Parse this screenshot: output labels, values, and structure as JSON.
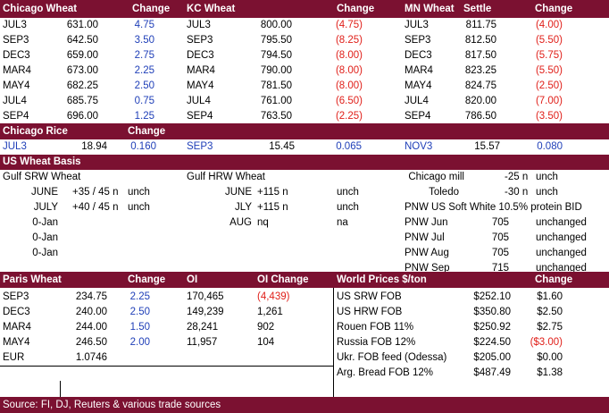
{
  "futures_header": {
    "chicago": "Chicago Wheat",
    "change": "Change",
    "kc": "KC Wheat",
    "kc_change": "Change",
    "mn": "MN Wheat",
    "settle": "Settle",
    "mn_change": "Change"
  },
  "chicago_rows": [
    {
      "m": "JUL3",
      "p": "631.00",
      "c": "4.75",
      "cc": "blue"
    },
    {
      "m": "SEP3",
      "p": "642.50",
      "c": "3.50",
      "cc": "blue"
    },
    {
      "m": "DEC3",
      "p": "659.00",
      "c": "2.75",
      "cc": "blue"
    },
    {
      "m": "MAR4",
      "p": "673.00",
      "c": "2.25",
      "cc": "blue"
    },
    {
      "m": "MAY4",
      "p": "682.25",
      "c": "2.50",
      "cc": "blue"
    },
    {
      "m": "JUL4",
      "p": "685.75",
      "c": "0.75",
      "cc": "blue"
    },
    {
      "m": "SEP4",
      "p": "696.00",
      "c": "1.25",
      "cc": "blue"
    }
  ],
  "kc_rows": [
    {
      "m": "JUL3",
      "p": "800.00",
      "c": "(4.75)",
      "cc": "red"
    },
    {
      "m": "SEP3",
      "p": "795.50",
      "c": "(8.25)",
      "cc": "red"
    },
    {
      "m": "DEC3",
      "p": "794.50",
      "c": "(8.00)",
      "cc": "red"
    },
    {
      "m": "MAR4",
      "p": "790.00",
      "c": "(8.00)",
      "cc": "red"
    },
    {
      "m": "MAY4",
      "p": "781.50",
      "c": "(8.00)",
      "cc": "red"
    },
    {
      "m": "JUL4",
      "p": "761.00",
      "c": "(6.50)",
      "cc": "red"
    },
    {
      "m": "SEP4",
      "p": "763.50",
      "c": "(2.25)",
      "cc": "red"
    }
  ],
  "mn_rows": [
    {
      "m": "JUL3",
      "p": "811.75",
      "c": "(4.00)",
      "cc": "red"
    },
    {
      "m": "SEP3",
      "p": "812.50",
      "c": "(5.50)",
      "cc": "red"
    },
    {
      "m": "DEC3",
      "p": "817.50",
      "c": "(5.75)",
      "cc": "red"
    },
    {
      "m": "MAR4",
      "p": "823.25",
      "c": "(5.50)",
      "cc": "red"
    },
    {
      "m": "MAY4",
      "p": "824.75",
      "c": "(2.50)",
      "cc": "red"
    },
    {
      "m": "JUL4",
      "p": "820.00",
      "c": "(7.00)",
      "cc": "red"
    },
    {
      "m": "SEP4",
      "p": "786.50",
      "c": "(3.50)",
      "cc": "red"
    }
  ],
  "rice": {
    "title": "Chicago Rice",
    "change": "Change",
    "m1": "JUL3",
    "p1": "18.94",
    "c1": "0.160",
    "m2": "SEP3",
    "p2": "15.45",
    "c2": "0.065",
    "m3": "NOV3",
    "p3": "15.57",
    "c3": "0.080"
  },
  "basis": {
    "title": "US Wheat Basis",
    "gulf_srw": "Gulf SRW Wheat",
    "gulf_hrw": "Gulf HRW Wheat",
    "srw_rows": [
      {
        "m": "JUNE",
        "v": "+35 / 45 n",
        "c": "unch"
      },
      {
        "m": "JULY",
        "v": "+40 / 45 n",
        "c": "unch"
      },
      {
        "m": "0-Jan",
        "v": "",
        "c": ""
      },
      {
        "m": "0-Jan",
        "v": "",
        "c": ""
      },
      {
        "m": "0-Jan",
        "v": "",
        "c": ""
      }
    ],
    "hrw_rows": [
      {
        "m": "JUNE",
        "v": "+115 n",
        "c": "unch"
      },
      {
        "m": "JLY",
        "v": "+115 n",
        "c": "unch"
      },
      {
        "m": "AUG",
        "v": "nq",
        "c": "na"
      }
    ],
    "chicago_mill": "Chicago mill",
    "chicago_mill_v": "-25 n",
    "chicago_mill_c": "unch",
    "toledo": "Toledo",
    "toledo_v": "-30 n",
    "toledo_c": "unch",
    "pnw_title": "PNW US Soft White 10.5% protein BID",
    "pnw_rows": [
      {
        "m": "PNW Jun",
        "v": "705",
        "c": "unchanged"
      },
      {
        "m": "PNW Jul",
        "v": "705",
        "c": "unchanged"
      },
      {
        "m": "PNW Aug",
        "v": "705",
        "c": "unchanged"
      },
      {
        "m": "PNW Sep",
        "v": "715",
        "c": "unchanged"
      }
    ]
  },
  "paris": {
    "title": "Paris Wheat",
    "change": "Change",
    "oi": "OI",
    "oi_change": "OI Change",
    "rows": [
      {
        "m": "SEP3",
        "p": "234.75",
        "c": "2.25",
        "oi": "170,465",
        "oic": "(4,439)",
        "oicc": "red"
      },
      {
        "m": "DEC3",
        "p": "240.00",
        "c": "2.50",
        "oi": "149,239",
        "oic": "1,261",
        "oicc": ""
      },
      {
        "m": "MAR4",
        "p": "244.00",
        "c": "1.50",
        "oi": "28,241",
        "oic": "902",
        "oicc": ""
      },
      {
        "m": "MAY4",
        "p": "246.50",
        "c": "2.00",
        "oi": "11,957",
        "oic": "104",
        "oicc": ""
      }
    ],
    "eur": "EUR",
    "eur_v": "1.0746"
  },
  "world": {
    "title": "World Prices $/ton",
    "change": "Change",
    "rows": [
      {
        "n": "US SRW FOB",
        "p": "$252.10",
        "c": "$1.60",
        "cc": ""
      },
      {
        "n": "US HRW FOB",
        "p": "$350.80",
        "c": "$2.50",
        "cc": ""
      },
      {
        "n": "Rouen FOB 11%",
        "p": "$250.92",
        "c": "$2.75",
        "cc": ""
      },
      {
        "n": "Russia FOB 12%",
        "p": "$224.50",
        "c": "($3.00)",
        "cc": "red"
      },
      {
        "n": "Ukr. FOB feed (Odessa)",
        "p": "$205.00",
        "c": "$0.00",
        "cc": ""
      },
      {
        "n": "Arg. Bread FOB 12%",
        "p": "$487.49",
        "c": "$1.38",
        "cc": ""
      }
    ]
  },
  "footer": {
    "source": "Source: FI, DJ, Reuters & various trade sources"
  }
}
